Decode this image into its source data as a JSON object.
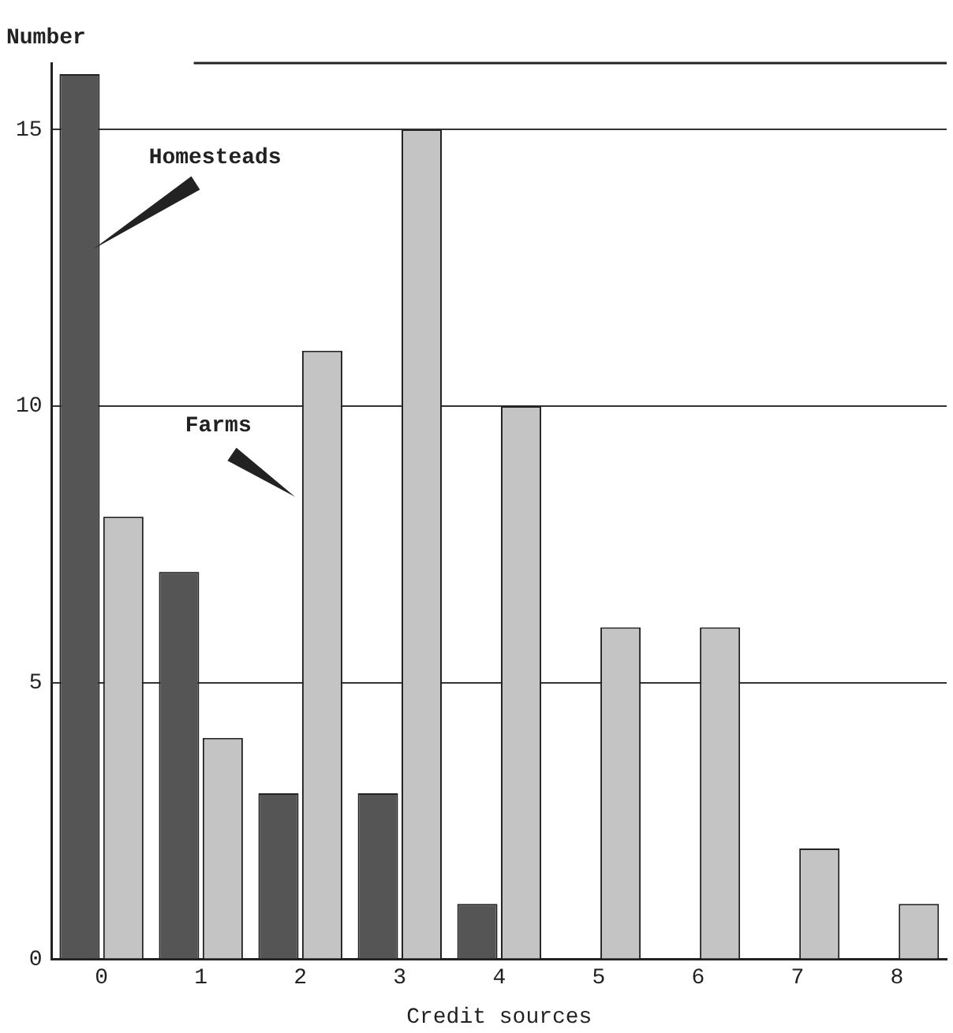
{
  "chart_data": {
    "type": "bar",
    "xlabel": "Credit sources",
    "ylabel": "Number",
    "categories": [
      "0",
      "1",
      "2",
      "3",
      "4",
      "5",
      "6",
      "7",
      "8"
    ],
    "series": [
      {
        "name": "Homesteads",
        "color": "#555555",
        "values": [
          16,
          7,
          3,
          3,
          1,
          null,
          null,
          null,
          null
        ]
      },
      {
        "name": "Farms",
        "color": "#c4c4c4",
        "values": [
          8,
          4,
          11,
          15,
          10,
          6,
          6,
          2,
          1
        ]
      }
    ],
    "ylim": [
      0,
      16.2
    ],
    "yticks": [
      0,
      5,
      10,
      15
    ],
    "grid": "y",
    "legend": false
  }
}
